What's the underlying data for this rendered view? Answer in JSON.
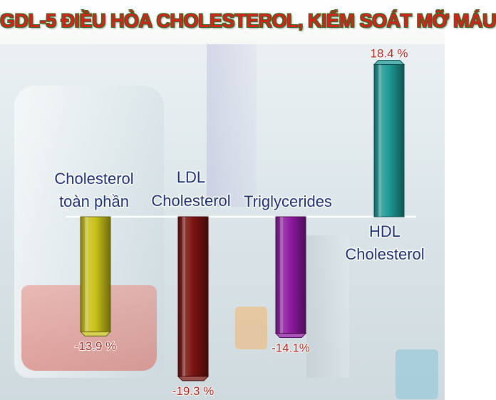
{
  "title": "GDL-5 ĐIỀU HÒA CHOLESTEROL, KIỂM SOÁT MỠ MÁU",
  "chart_data": {
    "type": "bar",
    "categories": [
      [
        "Cholesterol",
        "toàn phần"
      ],
      [
        "LDL",
        "Cholesterol"
      ],
      [
        "Triglycerides"
      ],
      [
        "HDL",
        "Cholesterol"
      ]
    ],
    "values": [
      -13.9,
      -19.3,
      -14.1,
      18.4
    ],
    "value_labels": [
      "-13.9 %",
      "-19.3 %",
      "-14.1%",
      "18.4 %"
    ],
    "colors": [
      "#c9c21a",
      "#7a1410",
      "#8e1aa0",
      "#1f9a96"
    ],
    "ylim": [
      -19.3,
      18.4
    ],
    "grid": false,
    "legend": "none"
  }
}
